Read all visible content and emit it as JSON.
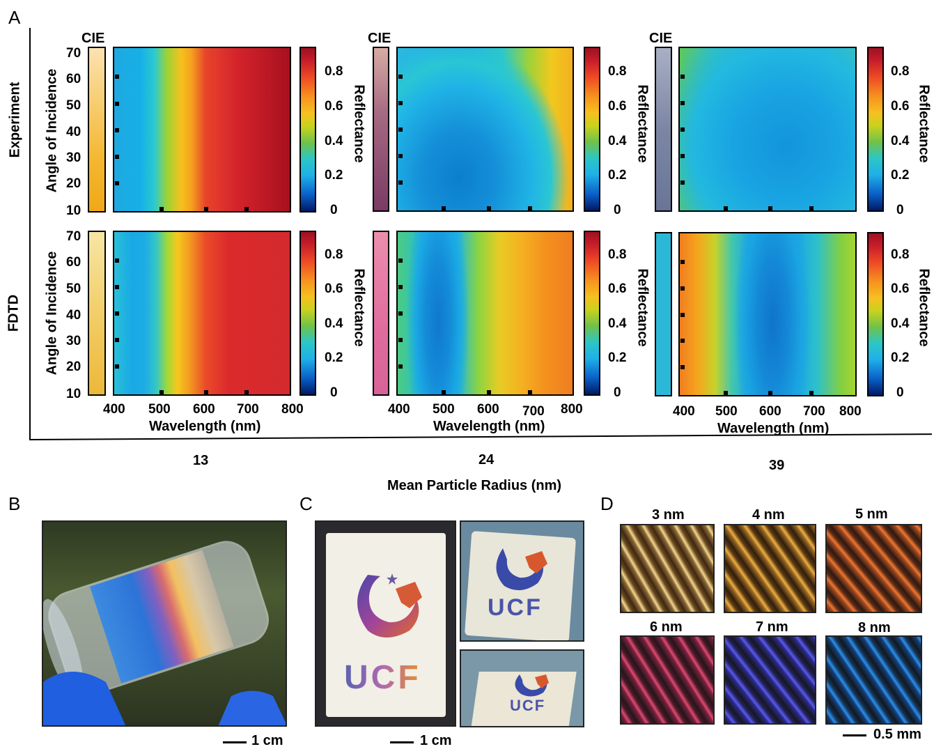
{
  "panels": {
    "a": "A",
    "b": "B",
    "c": "C",
    "d": "D"
  },
  "row_labels": {
    "experiment": "Experiment",
    "fdtd": "FDTD"
  },
  "cie_label": "CIE",
  "y_axis_title": "Angle of Incidence",
  "y_ticks": [
    "70",
    "60",
    "50",
    "40",
    "30",
    "20",
    "10"
  ],
  "x_axis_title": "Wavelength (nm)",
  "x_ticks": [
    "400",
    "500",
    "600",
    "700",
    "800"
  ],
  "colorbar_title": "Reflectance",
  "colorbar_ticks": [
    "0.8",
    "0.6",
    "0.4",
    "0.2",
    "0"
  ],
  "radii": [
    "13",
    "24",
    "39"
  ],
  "radius_axis_title": "Mean Particle Radius (nm)",
  "scale_b": "1 cm",
  "scale_c": "1 cm",
  "scale_d": "0.5 mm",
  "logo_text": "UCF",
  "d_labels": [
    "3 nm",
    "4 nm",
    "5 nm",
    "6 nm",
    "7 nm",
    "8 nm"
  ],
  "colors": {
    "cie_exp": [
      "#f3b431",
      "#8a4a72",
      "#7d86a3"
    ],
    "cie_fdtd": [
      "#f2c95e",
      "#e07aa6",
      "#2bb8d8"
    ]
  }
}
